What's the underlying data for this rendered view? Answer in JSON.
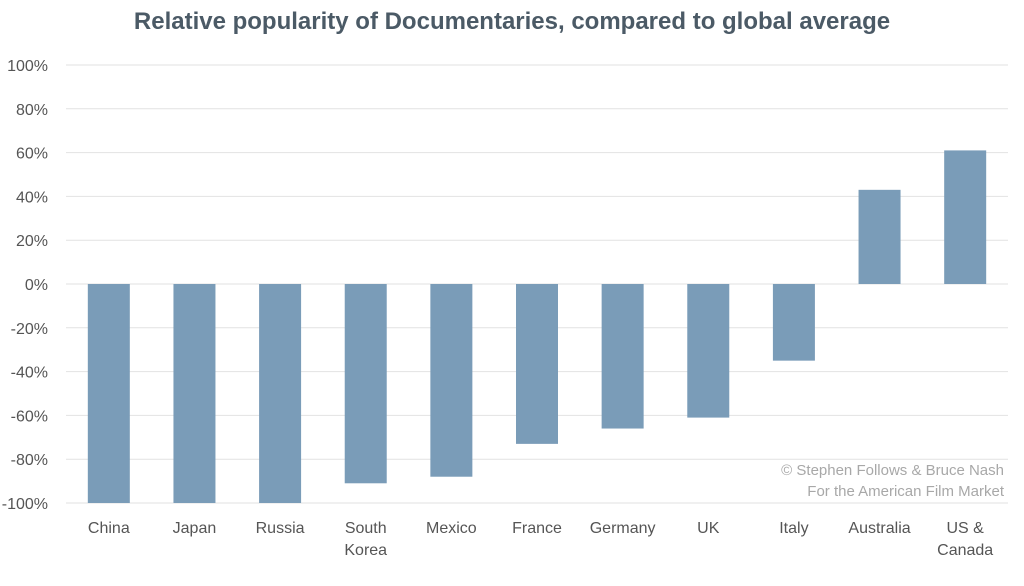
{
  "chart_data": {
    "type": "bar",
    "title": "Relative popularity of Documentaries, compared to global average",
    "xlabel": "",
    "ylabel": "",
    "categories": [
      [
        "China"
      ],
      [
        "Japan"
      ],
      [
        "Russia"
      ],
      [
        "South",
        "Korea"
      ],
      [
        "Mexico"
      ],
      [
        "France"
      ],
      [
        "Germany"
      ],
      [
        "UK"
      ],
      [
        "Italy"
      ],
      [
        "Australia"
      ],
      [
        "US &",
        "Canada"
      ]
    ],
    "values": [
      -100,
      -100,
      -100,
      -91,
      -88,
      -73,
      -66,
      -61,
      -35,
      43,
      61
    ],
    "ylim": [
      -100,
      100
    ],
    "yticks": [
      100,
      80,
      60,
      40,
      20,
      0,
      -20,
      -40,
      -60,
      -80,
      -100
    ],
    "ytick_format": "percent",
    "grid": true,
    "legend": "none",
    "bar_color": "#7a9cb8",
    "grid_color": "#e2e2e2"
  },
  "credit": {
    "line1": "© Stephen Follows & Bruce Nash",
    "line2": "For the American Film Market"
  }
}
